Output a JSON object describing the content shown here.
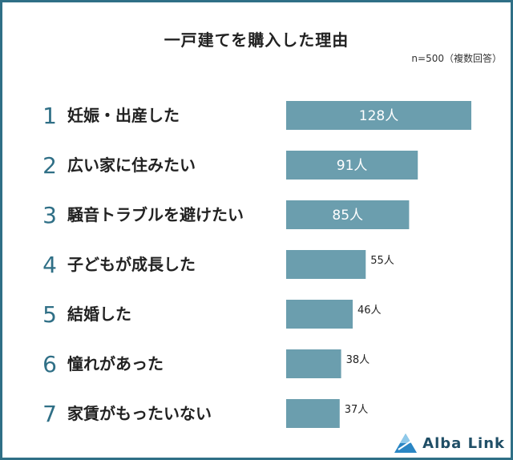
{
  "title": "一戸建てを購入した理由",
  "note": "n=500（複数回答）",
  "brand": "Alba Link",
  "colors": {
    "bar": "#6b9eae",
    "rank": "#2f6f86",
    "frame": "#2f6f86"
  },
  "chart_data": {
    "type": "bar",
    "orientation": "horizontal",
    "categories": [
      "妊娠・出産した",
      "広い家に住みたい",
      "騒音トラブルを避けたい",
      "子どもが成長した",
      "結婚した",
      "憧れがあった",
      "家賃がもったいない"
    ],
    "ranks": [
      "1",
      "2",
      "3",
      "4",
      "5",
      "6",
      "7"
    ],
    "values": [
      128,
      91,
      85,
      55,
      46,
      38,
      37
    ],
    "value_labels": [
      "128人",
      "91人",
      "85人",
      "55人",
      "46人",
      "38人",
      "37人"
    ]
  }
}
